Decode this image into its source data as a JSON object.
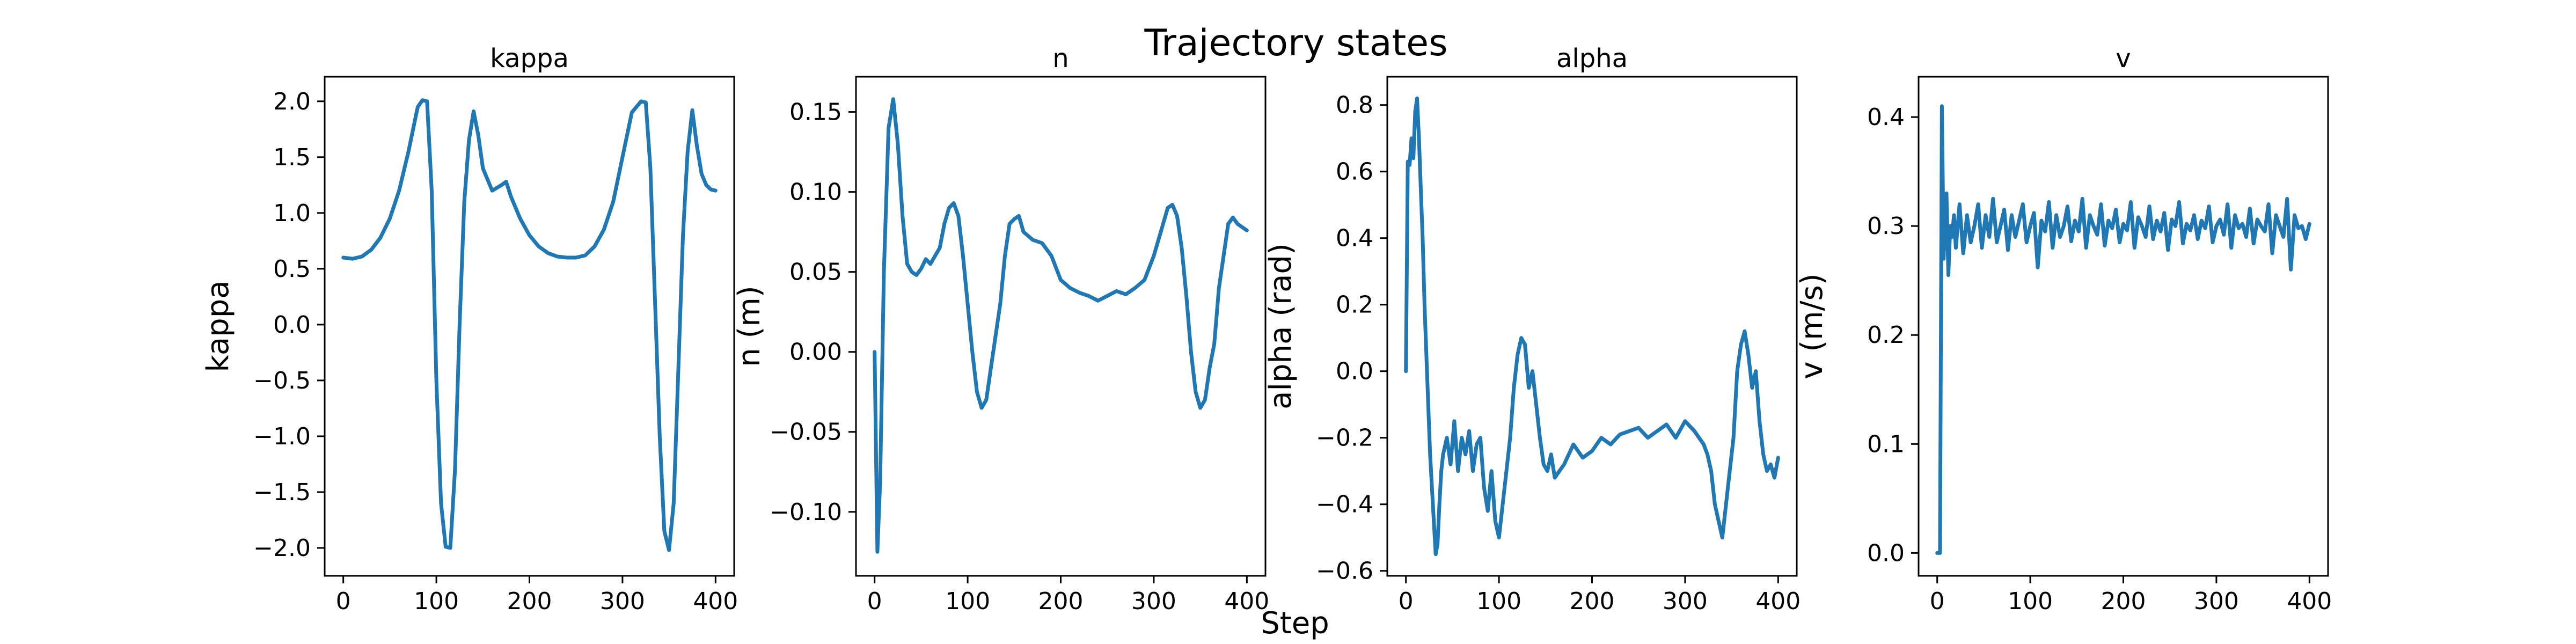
{
  "figure": {
    "suptitle": "Trajectory states",
    "xlabel": "Step",
    "line_color": "#1f77b4"
  },
  "chart_data": [
    {
      "type": "line",
      "title": "kappa",
      "xlabel": "",
      "ylabel": "kappa",
      "xlim": [
        -20,
        420
      ],
      "ylim": [
        -2.25,
        2.22
      ],
      "xticks": [
        0,
        100,
        200,
        300,
        400
      ],
      "yticks": [
        -2.0,
        -1.5,
        -1.0,
        -0.5,
        0.0,
        0.5,
        1.0,
        1.5,
        2.0
      ],
      "grid": false,
      "series": [
        {
          "x": [
            0,
            10,
            20,
            30,
            40,
            50,
            60,
            70,
            80,
            85,
            90,
            95,
            100,
            105,
            110,
            115,
            120,
            125,
            130,
            135,
            140,
            145,
            150,
            160,
            170,
            175,
            180,
            190,
            200,
            210,
            220,
            230,
            240,
            250,
            260,
            270,
            280,
            290,
            300,
            310,
            320,
            325,
            330,
            335,
            340,
            345,
            350,
            355,
            360,
            365,
            370,
            375,
            380,
            385,
            390,
            395,
            400
          ],
          "values": [
            0.6,
            0.59,
            0.61,
            0.67,
            0.78,
            0.95,
            1.2,
            1.55,
            1.95,
            2.01,
            2.0,
            1.2,
            -0.5,
            -1.6,
            -1.99,
            -2.0,
            -1.3,
            0.0,
            1.1,
            1.65,
            1.91,
            1.7,
            1.4,
            1.2,
            1.25,
            1.28,
            1.15,
            0.95,
            0.8,
            0.7,
            0.64,
            0.61,
            0.6,
            0.6,
            0.62,
            0.7,
            0.85,
            1.1,
            1.5,
            1.9,
            2.0,
            1.99,
            1.4,
            0.2,
            -1.0,
            -1.85,
            -2.02,
            -1.6,
            -0.4,
            0.8,
            1.55,
            1.92,
            1.6,
            1.35,
            1.25,
            1.21,
            1.2
          ]
        }
      ]
    },
    {
      "type": "line",
      "title": "n",
      "xlabel": "",
      "ylabel": "n (m)",
      "xlim": [
        -20,
        420
      ],
      "ylim": [
        -0.14,
        0.172
      ],
      "xticks": [
        0,
        100,
        200,
        300,
        400
      ],
      "yticks": [
        -0.1,
        -0.05,
        0.0,
        0.05,
        0.1,
        0.15
      ],
      "grid": false,
      "series": [
        {
          "x": [
            0,
            3,
            6,
            10,
            15,
            20,
            25,
            30,
            35,
            40,
            45,
            50,
            55,
            60,
            65,
            70,
            75,
            80,
            85,
            90,
            95,
            100,
            105,
            110,
            115,
            120,
            125,
            130,
            135,
            140,
            145,
            150,
            155,
            160,
            170,
            180,
            190,
            200,
            210,
            220,
            230,
            240,
            250,
            260,
            270,
            280,
            290,
            300,
            305,
            310,
            315,
            320,
            325,
            330,
            335,
            340,
            345,
            350,
            355,
            360,
            365,
            370,
            375,
            380,
            385,
            390,
            395,
            400
          ],
          "values": [
            0.0,
            -0.125,
            -0.08,
            0.05,
            0.14,
            0.158,
            0.13,
            0.085,
            0.055,
            0.05,
            0.048,
            0.052,
            0.058,
            0.055,
            0.06,
            0.065,
            0.08,
            0.09,
            0.093,
            0.085,
            0.06,
            0.03,
            0.0,
            -0.025,
            -0.035,
            -0.03,
            -0.01,
            0.01,
            0.03,
            0.06,
            0.08,
            0.083,
            0.085,
            0.075,
            0.07,
            0.068,
            0.06,
            0.045,
            0.04,
            0.037,
            0.035,
            0.032,
            0.035,
            0.038,
            0.036,
            0.04,
            0.045,
            0.06,
            0.07,
            0.08,
            0.09,
            0.092,
            0.085,
            0.065,
            0.035,
            0.0,
            -0.025,
            -0.035,
            -0.03,
            -0.01,
            0.005,
            0.04,
            0.06,
            0.08,
            0.084,
            0.08,
            0.078,
            0.076
          ]
        }
      ]
    },
    {
      "type": "line",
      "title": "alpha",
      "xlabel": "",
      "ylabel": "alpha (rad)",
      "xlim": [
        -20,
        420
      ],
      "ylim": [
        -0.615,
        0.885
      ],
      "xticks": [
        0,
        100,
        200,
        300,
        400
      ],
      "yticks": [
        -0.6,
        -0.4,
        -0.2,
        0.0,
        0.2,
        0.4,
        0.6,
        0.8
      ],
      "grid": false,
      "series": [
        {
          "x": [
            0,
            2,
            4,
            6,
            8,
            10,
            12,
            14,
            16,
            18,
            20,
            22,
            24,
            26,
            28,
            30,
            32,
            34,
            36,
            38,
            40,
            44,
            48,
            52,
            56,
            60,
            64,
            68,
            72,
            76,
            80,
            84,
            88,
            92,
            96,
            100,
            104,
            108,
            112,
            116,
            120,
            124,
            128,
            132,
            136,
            140,
            144,
            148,
            152,
            156,
            160,
            170,
            180,
            190,
            200,
            210,
            220,
            230,
            240,
            250,
            260,
            270,
            280,
            290,
            300,
            310,
            320,
            324,
            328,
            332,
            336,
            340,
            344,
            348,
            352,
            356,
            360,
            364,
            368,
            372,
            376,
            380,
            384,
            388,
            392,
            396,
            400
          ],
          "values": [
            0.0,
            0.63,
            0.62,
            0.7,
            0.64,
            0.78,
            0.82,
            0.7,
            0.55,
            0.4,
            0.2,
            0.05,
            -0.1,
            -0.25,
            -0.35,
            -0.45,
            -0.55,
            -0.52,
            -0.4,
            -0.3,
            -0.25,
            -0.2,
            -0.28,
            -0.15,
            -0.3,
            -0.2,
            -0.25,
            -0.18,
            -0.3,
            -0.22,
            -0.2,
            -0.35,
            -0.42,
            -0.3,
            -0.45,
            -0.5,
            -0.4,
            -0.3,
            -0.2,
            -0.05,
            0.05,
            0.1,
            0.08,
            -0.05,
            0.0,
            -0.1,
            -0.2,
            -0.28,
            -0.3,
            -0.25,
            -0.32,
            -0.28,
            -0.22,
            -0.26,
            -0.24,
            -0.2,
            -0.22,
            -0.19,
            -0.18,
            -0.17,
            -0.2,
            -0.18,
            -0.16,
            -0.2,
            -0.15,
            -0.18,
            -0.22,
            -0.25,
            -0.3,
            -0.4,
            -0.45,
            -0.5,
            -0.4,
            -0.3,
            -0.2,
            0.0,
            0.08,
            0.12,
            0.05,
            -0.05,
            0.0,
            -0.15,
            -0.25,
            -0.3,
            -0.28,
            -0.32,
            -0.26
          ]
        }
      ]
    },
    {
      "type": "line",
      "title": "v",
      "xlabel": "",
      "ylabel": "v (m/s)",
      "xlim": [
        -20,
        420
      ],
      "ylim": [
        -0.021,
        0.437
      ],
      "xticks": [
        0,
        100,
        200,
        300,
        400
      ],
      "yticks": [
        0.0,
        0.1,
        0.2,
        0.3,
        0.4
      ],
      "grid": false,
      "series": [
        {
          "x": [
            0,
            3,
            4,
            5,
            6,
            7,
            8,
            10,
            12,
            14,
            16,
            18,
            20,
            24,
            28,
            32,
            36,
            40,
            44,
            48,
            52,
            56,
            60,
            64,
            68,
            72,
            76,
            80,
            84,
            88,
            92,
            96,
            100,
            104,
            108,
            112,
            116,
            120,
            124,
            128,
            132,
            136,
            140,
            144,
            148,
            152,
            156,
            160,
            164,
            168,
            172,
            176,
            180,
            184,
            188,
            192,
            196,
            200,
            204,
            208,
            212,
            216,
            220,
            224,
            228,
            232,
            236,
            240,
            244,
            248,
            252,
            256,
            260,
            264,
            268,
            272,
            276,
            280,
            284,
            288,
            292,
            296,
            300,
            304,
            308,
            312,
            316,
            320,
            324,
            328,
            332,
            336,
            340,
            344,
            348,
            352,
            356,
            360,
            364,
            368,
            372,
            376,
            380,
            384,
            388,
            392,
            396,
            400
          ],
          "values": [
            0.0,
            0.0,
            0.2,
            0.41,
            0.34,
            0.27,
            0.3,
            0.33,
            0.255,
            0.3,
            0.29,
            0.31,
            0.28,
            0.32,
            0.275,
            0.31,
            0.285,
            0.3,
            0.32,
            0.28,
            0.31,
            0.29,
            0.325,
            0.285,
            0.3,
            0.315,
            0.278,
            0.31,
            0.29,
            0.305,
            0.32,
            0.285,
            0.3,
            0.312,
            0.262,
            0.305,
            0.295,
            0.322,
            0.28,
            0.31,
            0.29,
            0.3,
            0.318,
            0.286,
            0.305,
            0.295,
            0.325,
            0.28,
            0.31,
            0.3,
            0.292,
            0.32,
            0.282,
            0.305,
            0.298,
            0.315,
            0.285,
            0.302,
            0.296,
            0.322,
            0.28,
            0.308,
            0.3,
            0.29,
            0.318,
            0.288,
            0.305,
            0.295,
            0.312,
            0.278,
            0.306,
            0.3,
            0.322,
            0.284,
            0.302,
            0.296,
            0.31,
            0.288,
            0.305,
            0.298,
            0.318,
            0.285,
            0.3,
            0.306,
            0.292,
            0.32,
            0.28,
            0.31,
            0.298,
            0.302,
            0.29,
            0.316,
            0.284,
            0.306,
            0.3,
            0.295,
            0.32,
            0.275,
            0.31,
            0.3,
            0.29,
            0.325,
            0.26,
            0.31,
            0.298,
            0.3,
            0.288,
            0.302
          ]
        }
      ]
    }
  ]
}
